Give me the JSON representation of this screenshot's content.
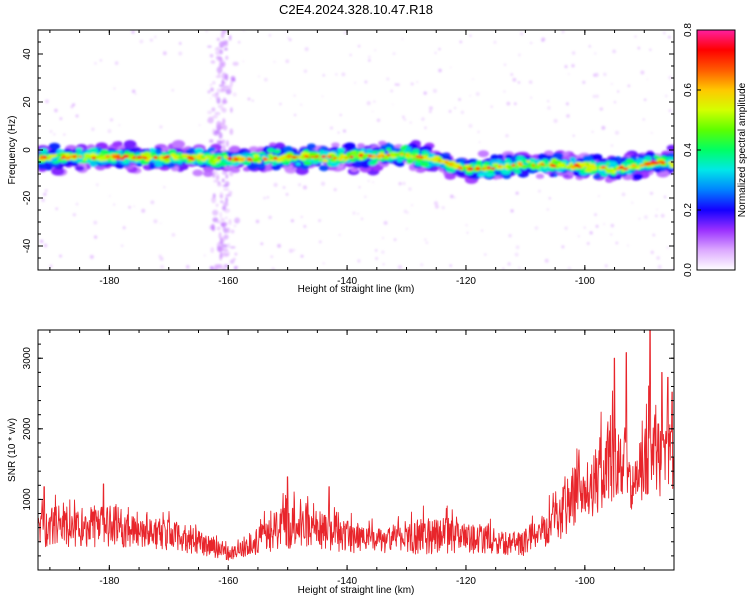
{
  "title": "C2E4.2024.328.10.47.R18",
  "chart_data": [
    {
      "type": "heatmap",
      "xlabel": "Height of straight line (km)",
      "ylabel": "Frequency (Hz)",
      "xlim": [
        -192,
        -85
      ],
      "ylim": [
        -50,
        50
      ],
      "xticks": [
        -180,
        -160,
        -140,
        -120,
        -100
      ],
      "yticks": [
        -40,
        -20,
        0,
        20,
        40
      ],
      "colorbar": {
        "label": "Normalized spectral amplitude",
        "range": [
          0,
          0.8
        ],
        "ticks": [
          "0.0",
          "0.2",
          "0.4",
          "0.6",
          "0.8"
        ],
        "colors": [
          "#ffffff",
          "#dca8ff",
          "#9a30ff",
          "#1400ff",
          "#0082ff",
          "#00e8e8",
          "#00ff64",
          "#5cff00",
          "#d4ff00",
          "#ffc800",
          "#ff5a00",
          "#ff0000",
          "#ff1fa0"
        ]
      },
      "band": {
        "center_freq_hz": [
          [
            -192,
            -3
          ],
          [
            -180,
            -3
          ],
          [
            -170,
            -3
          ],
          [
            -160,
            -4
          ],
          [
            -150,
            -3
          ],
          [
            -140,
            -3
          ],
          [
            -130,
            -2
          ],
          [
            -125,
            -4
          ],
          [
            -120,
            -8
          ],
          [
            -115,
            -7
          ],
          [
            -110,
            -6
          ],
          [
            -105,
            -6
          ],
          [
            -100,
            -7
          ],
          [
            -95,
            -8
          ],
          [
            -90,
            -6
          ],
          [
            -85,
            -5
          ]
        ],
        "approx_halfwidth_hz": 6
      },
      "vertical_streak_km": -161
    },
    {
      "type": "line",
      "xlabel": "Height of straight line (km)",
      "ylabel": "SNR (10 * v/v)",
      "xlim": [
        -192,
        -85
      ],
      "ylim": [
        0,
        3400
      ],
      "xticks": [
        -180,
        -160,
        -140,
        -120,
        -100
      ],
      "yticks": [
        1000,
        2000,
        3000
      ],
      "color": "#e8252b",
      "envelope": [
        [
          -192,
          820
        ],
        [
          -188,
          930
        ],
        [
          -184,
          800
        ],
        [
          -180,
          940
        ],
        [
          -175,
          760
        ],
        [
          -170,
          720
        ],
        [
          -165,
          560
        ],
        [
          -160,
          320
        ],
        [
          -157,
          440
        ],
        [
          -153,
          760
        ],
        [
          -150,
          960
        ],
        [
          -146,
          880
        ],
        [
          -142,
          760
        ],
        [
          -138,
          640
        ],
        [
          -134,
          580
        ],
        [
          -130,
          660
        ],
        [
          -126,
          780
        ],
        [
          -123,
          740
        ],
        [
          -120,
          640
        ],
        [
          -117,
          650
        ],
        [
          -114,
          540
        ],
        [
          -111,
          520
        ],
        [
          -108,
          720
        ],
        [
          -106,
          950
        ],
        [
          -104,
          1250
        ],
        [
          -102,
          1450
        ],
        [
          -100,
          1500
        ],
        [
          -98,
          1750
        ],
        [
          -96,
          2250
        ],
        [
          -94,
          2050
        ],
        [
          -92,
          1500
        ],
        [
          -90,
          2000
        ],
        [
          -89,
          2400
        ],
        [
          -88,
          2350
        ],
        [
          -87,
          2050
        ],
        [
          -86,
          2100
        ],
        [
          -85,
          2050
        ]
      ],
      "floor": [
        [
          -192,
          320
        ],
        [
          -180,
          330
        ],
        [
          -170,
          280
        ],
        [
          -160,
          140
        ],
        [
          -150,
          300
        ],
        [
          -140,
          240
        ],
        [
          -130,
          220
        ],
        [
          -120,
          240
        ],
        [
          -110,
          200
        ],
        [
          -104,
          440
        ],
        [
          -100,
          640
        ],
        [
          -96,
          850
        ],
        [
          -92,
          850
        ],
        [
          -88,
          1000
        ],
        [
          -85,
          1100
        ]
      ],
      "peaks": [
        [
          -191,
          1180
        ],
        [
          -181,
          1220
        ],
        [
          -150,
          1320
        ],
        [
          -143,
          1180
        ],
        [
          -95,
          3000
        ],
        [
          -93,
          3080
        ],
        [
          -89,
          3400
        ],
        [
          -87,
          2800
        ],
        [
          -86,
          2730
        ],
        [
          -85.3,
          2520
        ]
      ]
    }
  ]
}
